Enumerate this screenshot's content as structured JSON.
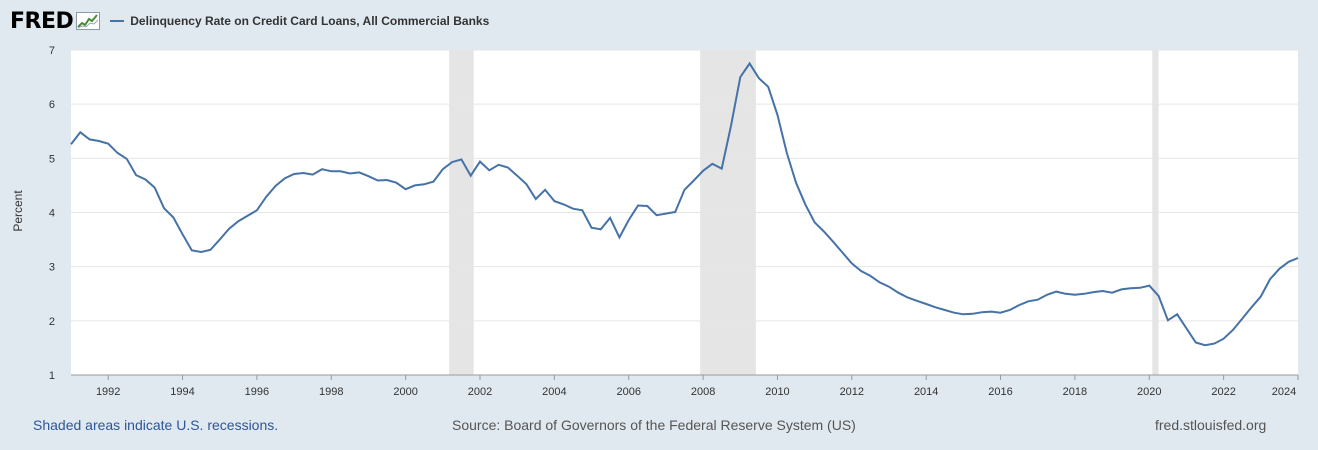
{
  "header": {
    "logo": "FRED",
    "series_title": "Delinquency Rate on Credit Card Loans, All Commercial Banks"
  },
  "footer": {
    "recession_note": "Shaded areas indicate U.S. recessions.",
    "source": "Source: Board of Governors of the Federal Reserve System (US)",
    "site": "fred.stlouisfed.org"
  },
  "colors": {
    "background": "#e1e9f0",
    "line": "#4572a7",
    "recession": "#e5e5e5",
    "grid": "#e6e6e6"
  },
  "chart_data": {
    "type": "line",
    "title": "",
    "xlabel": "",
    "ylabel": "Percent",
    "xlim": [
      1991.0,
      2024.0
    ],
    "ylim": [
      1,
      7
    ],
    "xticks": [
      1992,
      1994,
      1996,
      1998,
      2000,
      2002,
      2004,
      2006,
      2008,
      2010,
      2012,
      2014,
      2016,
      2018,
      2020,
      2022,
      2024
    ],
    "yticks": [
      1,
      2,
      3,
      4,
      5,
      6,
      7
    ],
    "grid": true,
    "recessions": [
      [
        2001.17,
        2001.83
      ],
      [
        2007.92,
        2009.42
      ],
      [
        2020.08,
        2020.25
      ]
    ],
    "series": [
      {
        "name": "Delinquency Rate on Credit Card Loans, All Commercial Banks",
        "x": [
          1991.0,
          1991.25,
          1991.5,
          1991.75,
          1992.0,
          1992.25,
          1992.5,
          1992.75,
          1993.0,
          1993.25,
          1993.5,
          1993.75,
          1994.0,
          1994.25,
          1994.5,
          1994.75,
          1995.0,
          1995.25,
          1995.5,
          1995.75,
          1996.0,
          1996.25,
          1996.5,
          1996.75,
          1997.0,
          1997.25,
          1997.5,
          1997.75,
          1998.0,
          1998.25,
          1998.5,
          1998.75,
          1999.0,
          1999.25,
          1999.5,
          1999.75,
          2000.0,
          2000.25,
          2000.5,
          2000.75,
          2001.0,
          2001.25,
          2001.5,
          2001.75,
          2002.0,
          2002.25,
          2002.5,
          2002.75,
          2003.0,
          2003.25,
          2003.5,
          2003.75,
          2004.0,
          2004.25,
          2004.5,
          2004.75,
          2005.0,
          2005.25,
          2005.5,
          2005.75,
          2006.0,
          2006.25,
          2006.5,
          2006.75,
          2007.0,
          2007.25,
          2007.5,
          2007.75,
          2008.0,
          2008.25,
          2008.5,
          2008.75,
          2009.0,
          2009.25,
          2009.5,
          2009.75,
          2010.0,
          2010.25,
          2010.5,
          2010.75,
          2011.0,
          2011.25,
          2011.5,
          2011.75,
          2012.0,
          2012.25,
          2012.5,
          2012.75,
          2013.0,
          2013.25,
          2013.5,
          2013.75,
          2014.0,
          2014.25,
          2014.5,
          2014.75,
          2015.0,
          2015.25,
          2015.5,
          2015.75,
          2016.0,
          2016.25,
          2016.5,
          2016.75,
          2017.0,
          2017.25,
          2017.5,
          2017.75,
          2018.0,
          2018.25,
          2018.5,
          2018.75,
          2019.0,
          2019.25,
          2019.5,
          2019.75,
          2020.0,
          2020.25,
          2020.5,
          2020.75,
          2021.0,
          2021.25,
          2021.5,
          2021.75,
          2022.0,
          2022.25,
          2022.5,
          2022.75,
          2023.0,
          2023.25,
          2023.5,
          2023.75,
          2024.0
        ],
        "values": [
          5.26,
          5.48,
          5.35,
          5.32,
          5.27,
          5.1,
          4.99,
          4.69,
          4.61,
          4.46,
          4.08,
          3.91,
          3.6,
          3.3,
          3.27,
          3.31,
          3.5,
          3.7,
          3.84,
          3.94,
          4.04,
          4.29,
          4.49,
          4.63,
          4.71,
          4.73,
          4.7,
          4.8,
          4.76,
          4.76,
          4.72,
          4.74,
          4.67,
          4.59,
          4.6,
          4.55,
          4.43,
          4.5,
          4.52,
          4.57,
          4.8,
          4.93,
          4.98,
          4.68,
          4.94,
          4.78,
          4.88,
          4.83,
          4.68,
          4.52,
          4.25,
          4.42,
          4.21,
          4.15,
          4.07,
          4.04,
          3.72,
          3.69,
          3.9,
          3.54,
          3.86,
          4.13,
          4.12,
          3.95,
          3.98,
          4.01,
          4.42,
          4.59,
          4.77,
          4.9,
          4.81,
          5.6,
          6.5,
          6.75,
          6.48,
          6.32,
          5.8,
          5.1,
          4.55,
          4.15,
          3.82,
          3.65,
          3.46,
          3.26,
          3.06,
          2.92,
          2.83,
          2.71,
          2.63,
          2.52,
          2.43,
          2.37,
          2.31,
          2.25,
          2.2,
          2.15,
          2.12,
          2.13,
          2.16,
          2.17,
          2.15,
          2.2,
          2.29,
          2.36,
          2.39,
          2.48,
          2.54,
          2.5,
          2.48,
          2.5,
          2.53,
          2.55,
          2.52,
          2.58,
          2.6,
          2.61,
          2.65,
          2.46,
          2.01,
          2.12,
          1.86,
          1.6,
          1.55,
          1.58,
          1.67,
          1.83,
          2.04,
          2.25,
          2.45,
          2.77,
          2.96,
          3.09,
          3.16
        ]
      }
    ]
  }
}
